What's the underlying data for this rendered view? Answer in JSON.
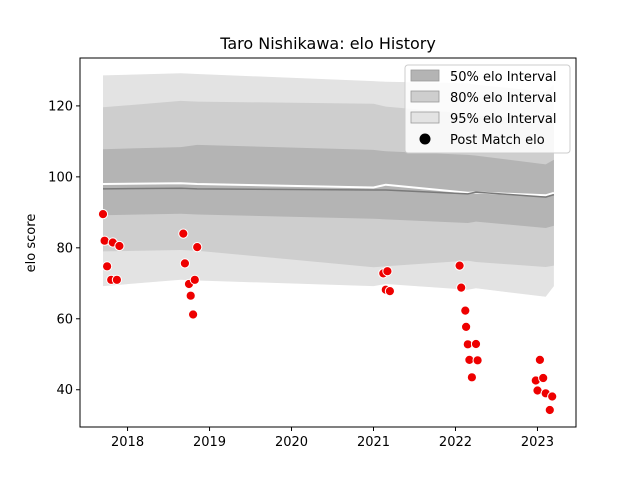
{
  "chart_data": {
    "type": "scatter",
    "title": "Taro Nishikawa: elo History",
    "xlabel": "",
    "ylabel": "elo score",
    "xlim": [
      2017.42,
      2023.47
    ],
    "ylim": [
      29.5,
      133.5
    ],
    "x_ticks": [
      2018,
      2019,
      2020,
      2021,
      2022,
      2023
    ],
    "x_tick_labels": [
      "2018",
      "2019",
      "2020",
      "2021",
      "2022",
      "2023"
    ],
    "y_ticks": [
      40,
      60,
      80,
      100,
      120
    ],
    "y_tick_labels": [
      "40",
      "60",
      "80",
      "100",
      "120"
    ],
    "grid": false,
    "legend_position": "upper-right",
    "legend": [
      {
        "label": "50% elo Interval",
        "kind": "band50"
      },
      {
        "label": "80% elo Interval",
        "kind": "band80"
      },
      {
        "label": "95% elo Interval",
        "kind": "band95"
      },
      {
        "label": "Post Match elo",
        "kind": "marker"
      }
    ],
    "colors": {
      "band50": "#b4b4b4",
      "band80": "#cecece",
      "band95": "#e3e3e3",
      "mean_line": "#ffffff",
      "median_line": "#7a7a7a",
      "points": "#ee0000"
    },
    "bands": {
      "x": [
        2017.7,
        2018.65,
        2018.85,
        2021.0,
        2021.15,
        2022.15,
        2022.25,
        2023.1,
        2023.2
      ],
      "mean": [
        98.0,
        98.2,
        98.0,
        97.0,
        97.8,
        95.5,
        95.6,
        94.8,
        95.5
      ],
      "median": [
        96.6,
        96.8,
        96.6,
        96.3,
        96.3,
        95.2,
        95.7,
        94.3,
        95.0
      ],
      "p50_lo": [
        89.2,
        89.6,
        89.4,
        88.2,
        88.0,
        87.0,
        87.4,
        85.6,
        86.2
      ],
      "p50_hi": [
        107.8,
        108.4,
        109.0,
        107.6,
        107.2,
        106.2,
        106.0,
        103.5,
        104.8
      ],
      "p80_lo": [
        79.0,
        79.4,
        79.2,
        74.5,
        74.8,
        76.4,
        76.0,
        74.6,
        75.0
      ],
      "p80_hi": [
        119.6,
        121.4,
        121.2,
        120.6,
        119.8,
        117.8,
        117.2,
        116.2,
        117.6
      ],
      "p95_lo": [
        69.2,
        71.0,
        70.8,
        69.2,
        69.8,
        68.2,
        68.6,
        66.2,
        69.2
      ],
      "p95_hi": [
        128.6,
        129.2,
        129.0,
        127.0,
        126.8,
        126.4,
        126.0,
        124.0,
        126.0
      ]
    },
    "points": [
      {
        "x": 2017.7,
        "y": 89.5
      },
      {
        "x": 2017.72,
        "y": 82.0
      },
      {
        "x": 2017.75,
        "y": 74.8
      },
      {
        "x": 2017.8,
        "y": 71.0
      },
      {
        "x": 2017.82,
        "y": 81.5
      },
      {
        "x": 2017.87,
        "y": 71.0
      },
      {
        "x": 2017.9,
        "y": 80.5
      },
      {
        "x": 2018.68,
        "y": 84.0
      },
      {
        "x": 2018.7,
        "y": 75.6
      },
      {
        "x": 2018.75,
        "y": 69.8
      },
      {
        "x": 2018.77,
        "y": 66.5
      },
      {
        "x": 2018.8,
        "y": 61.2
      },
      {
        "x": 2018.82,
        "y": 71.0
      },
      {
        "x": 2018.85,
        "y": 80.2
      },
      {
        "x": 2021.12,
        "y": 72.8
      },
      {
        "x": 2021.15,
        "y": 68.2
      },
      {
        "x": 2021.17,
        "y": 73.4
      },
      {
        "x": 2021.2,
        "y": 67.8
      },
      {
        "x": 2022.05,
        "y": 75.0
      },
      {
        "x": 2022.07,
        "y": 68.8
      },
      {
        "x": 2022.12,
        "y": 62.3
      },
      {
        "x": 2022.13,
        "y": 57.7
      },
      {
        "x": 2022.15,
        "y": 52.8
      },
      {
        "x": 2022.17,
        "y": 48.4
      },
      {
        "x": 2022.2,
        "y": 43.5
      },
      {
        "x": 2022.25,
        "y": 52.9
      },
      {
        "x": 2022.27,
        "y": 48.3
      },
      {
        "x": 2022.98,
        "y": 42.6
      },
      {
        "x": 2023.0,
        "y": 39.8
      },
      {
        "x": 2023.03,
        "y": 48.4
      },
      {
        "x": 2023.07,
        "y": 43.3
      },
      {
        "x": 2023.1,
        "y": 39.0
      },
      {
        "x": 2023.15,
        "y": 34.3
      },
      {
        "x": 2023.18,
        "y": 38.1
      }
    ]
  }
}
